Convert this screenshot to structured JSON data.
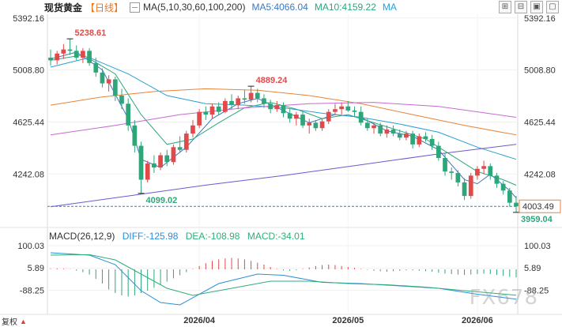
{
  "header": {
    "symbol": "现货黄金",
    "period": "【日线】",
    "ma_label": "MA(5,10,30,60,100,200)",
    "ma5_label": "MA5:4066.04",
    "ma10_label": "MA10:4159.22",
    "ma_more": "MA"
  },
  "toolbar": {
    "btn1": "⊞",
    "btn2": "⊟",
    "btn3": "▣",
    "btn4": "▢"
  },
  "macd_header": {
    "label": "MACD(26,12,9)",
    "diff": "DIFF:-125.98",
    "dea": "DEA:-108.98",
    "macd": "MACD:-34.01"
  },
  "corner": {
    "icon": "arrow-icon",
    "text": "复权"
  },
  "watermark": "FX678",
  "chart_data": [
    {
      "type": "candlestick",
      "y_axis_ticks": [
        "5392.16",
        "5008.80",
        "4625.44",
        "4242.08"
      ],
      "y_axis_tick_values": [
        5392.16,
        5008.8,
        4625.44,
        4242.08
      ],
      "ylim": [
        3935,
        5420
      ],
      "x_ticks": [
        "2026/04",
        "2026/05",
        "2026/06"
      ],
      "annotations": [
        {
          "text": "5238.61",
          "value": 5238.61,
          "kind": "high"
        },
        {
          "text": "4889.24",
          "value": 4889.24,
          "kind": "high"
        },
        {
          "text": "4099.02",
          "value": 4099.02,
          "kind": "low"
        },
        {
          "text": "3959.04",
          "value": 3959.04,
          "kind": "low"
        }
      ],
      "current_price": {
        "text": "4003.49",
        "value": 4003.49
      },
      "candles": [
        [
          5100,
          5160,
          5040,
          5080
        ],
        [
          5080,
          5150,
          5050,
          5130
        ],
        [
          5130,
          5200,
          5090,
          5160
        ],
        [
          5160,
          5238.61,
          5120,
          5150
        ],
        [
          5150,
          5190,
          5080,
          5100
        ],
        [
          5100,
          5170,
          5060,
          5150
        ],
        [
          5150,
          5170,
          5040,
          5060
        ],
        [
          5060,
          5100,
          4960,
          4990
        ],
        [
          4990,
          5020,
          4880,
          4910
        ],
        [
          4910,
          4970,
          4850,
          4940
        ],
        [
          4940,
          4960,
          4780,
          4820
        ],
        [
          4820,
          4870,
          4720,
          4760
        ],
        [
          4760,
          4800,
          4560,
          4600
        ],
        [
          4600,
          4640,
          4400,
          4450
        ],
        [
          4450,
          4480,
          4099.02,
          4200
        ],
        [
          4200,
          4340,
          4180,
          4320
        ],
        [
          4320,
          4380,
          4250,
          4290
        ],
        [
          4290,
          4400,
          4270,
          4380
        ],
        [
          4380,
          4420,
          4300,
          4330
        ],
        [
          4330,
          4460,
          4310,
          4440
        ],
        [
          4440,
          4520,
          4400,
          4420
        ],
        [
          4420,
          4560,
          4400,
          4540
        ],
        [
          4540,
          4640,
          4510,
          4600
        ],
        [
          4600,
          4720,
          4580,
          4700
        ],
        [
          4700,
          4740,
          4640,
          4680
        ],
        [
          4680,
          4760,
          4650,
          4740
        ],
        [
          4740,
          4770,
          4680,
          4700
        ],
        [
          4700,
          4800,
          4690,
          4780
        ],
        [
          4780,
          4830,
          4720,
          4750
        ],
        [
          4750,
          4820,
          4720,
          4800
        ],
        [
          4800,
          4860,
          4760,
          4790
        ],
        [
          4790,
          4889.24,
          4770,
          4840
        ],
        [
          4840,
          4870,
          4770,
          4800
        ],
        [
          4800,
          4830,
          4730,
          4760
        ],
        [
          4760,
          4790,
          4690,
          4720
        ],
        [
          4720,
          4780,
          4700,
          4750
        ],
        [
          4750,
          4770,
          4660,
          4690
        ],
        [
          4690,
          4720,
          4620,
          4650
        ],
        [
          4650,
          4700,
          4600,
          4680
        ],
        [
          4680,
          4700,
          4580,
          4600
        ],
        [
          4600,
          4650,
          4540,
          4620
        ],
        [
          4620,
          4640,
          4560,
          4580
        ],
        [
          4580,
          4650,
          4560,
          4630
        ],
        [
          4630,
          4720,
          4610,
          4700
        ],
        [
          4700,
          4760,
          4680,
          4720
        ],
        [
          4720,
          4770,
          4680,
          4740
        ],
        [
          4740,
          4780,
          4700,
          4710
        ],
        [
          4710,
          4740,
          4660,
          4700
        ],
        [
          4700,
          4740,
          4600,
          4620
        ],
        [
          4620,
          4650,
          4560,
          4580
        ],
        [
          4580,
          4620,
          4540,
          4600
        ],
        [
          4600,
          4620,
          4520,
          4540
        ],
        [
          4540,
          4600,
          4510,
          4570
        ],
        [
          4570,
          4600,
          4520,
          4540
        ],
        [
          4540,
          4570,
          4490,
          4510
        ],
        [
          4510,
          4560,
          4490,
          4540
        ],
        [
          4540,
          4560,
          4430,
          4460
        ],
        [
          4460,
          4540,
          4440,
          4520
        ],
        [
          4520,
          4550,
          4480,
          4500
        ],
        [
          4500,
          4530,
          4420,
          4450
        ],
        [
          4450,
          4480,
          4340,
          4360
        ],
        [
          4360,
          4400,
          4230,
          4260
        ],
        [
          4260,
          4290,
          4200,
          4250
        ],
        [
          4250,
          4270,
          4150,
          4180
        ],
        [
          4180,
          4210,
          4050,
          4080
        ],
        [
          4080,
          4250,
          4060,
          4230
        ],
        [
          4230,
          4300,
          4200,
          4280
        ],
        [
          4280,
          4340,
          4240,
          4300
        ],
        [
          4300,
          4320,
          4200,
          4230
        ],
        [
          4230,
          4250,
          4140,
          4170
        ],
        [
          4170,
          4190,
          4090,
          4120
        ],
        [
          4120,
          4140,
          4000,
          4030
        ],
        [
          4030,
          4080,
          3959.04,
          4003.49
        ]
      ],
      "moving_averages": [
        {
          "name": "MA5",
          "color": "#3a78c2",
          "values": [
            [
              0,
              5090
            ],
            [
              4,
              5140
            ],
            [
              8,
              5010
            ],
            [
              12,
              4650
            ],
            [
              14,
              4350
            ],
            [
              17,
              4290
            ],
            [
              21,
              4440
            ],
            [
              25,
              4650
            ],
            [
              29,
              4760
            ],
            [
              32,
              4800
            ],
            [
              36,
              4710
            ],
            [
              40,
              4620
            ],
            [
              44,
              4680
            ],
            [
              48,
              4660
            ],
            [
              52,
              4560
            ],
            [
              56,
              4520
            ],
            [
              60,
              4420
            ],
            [
              64,
              4200
            ],
            [
              66,
              4170
            ],
            [
              68,
              4240
            ],
            [
              71,
              4120
            ],
            [
              72,
              4066.04
            ]
          ]
        },
        {
          "name": "MA10",
          "color": "#2aa77a",
          "values": [
            [
              0,
              5080
            ],
            [
              5,
              5120
            ],
            [
              10,
              4980
            ],
            [
              14,
              4680
            ],
            [
              18,
              4460
            ],
            [
              22,
              4500
            ],
            [
              26,
              4620
            ],
            [
              30,
              4730
            ],
            [
              34,
              4770
            ],
            [
              38,
              4720
            ],
            [
              42,
              4650
            ],
            [
              46,
              4680
            ],
            [
              50,
              4620
            ],
            [
              54,
              4560
            ],
            [
              58,
              4500
            ],
            [
              62,
              4380
            ],
            [
              66,
              4260
            ],
            [
              70,
              4200
            ],
            [
              72,
              4159.22
            ]
          ]
        },
        {
          "name": "MA30",
          "color": "#2a9ed6",
          "values": [
            [
              0,
              5030
            ],
            [
              6,
              5100
            ],
            [
              12,
              4980
            ],
            [
              18,
              4820
            ],
            [
              24,
              4760
            ],
            [
              30,
              4750
            ],
            [
              36,
              4730
            ],
            [
              42,
              4690
            ],
            [
              48,
              4660
            ],
            [
              54,
              4610
            ],
            [
              60,
              4550
            ],
            [
              66,
              4440
            ],
            [
              72,
              4350
            ]
          ]
        },
        {
          "name": "MA60",
          "color": "#e8843a",
          "values": [
            [
              0,
              4750
            ],
            [
              8,
              4810
            ],
            [
              16,
              4850
            ],
            [
              24,
              4870
            ],
            [
              32,
              4860
            ],
            [
              40,
              4820
            ],
            [
              48,
              4760
            ],
            [
              56,
              4680
            ],
            [
              64,
              4600
            ],
            [
              72,
              4530
            ]
          ]
        },
        {
          "name": "MA100",
          "color": "#c66ad0",
          "values": [
            [
              0,
              4530
            ],
            [
              10,
              4600
            ],
            [
              20,
              4680
            ],
            [
              30,
              4730
            ],
            [
              40,
              4760
            ],
            [
              50,
              4770
            ],
            [
              60,
              4740
            ],
            [
              72,
              4660
            ]
          ]
        },
        {
          "name": "MA200",
          "color": "#6a5acd",
          "values": [
            [
              0,
              4000
            ],
            [
              12,
              4080
            ],
            [
              24,
              4160
            ],
            [
              36,
              4230
            ],
            [
              48,
              4310
            ],
            [
              60,
              4390
            ],
            [
              72,
              4460
            ]
          ]
        }
      ]
    },
    {
      "type": "macd",
      "y_axis_ticks": [
        "100.03",
        "5.89",
        "-88.25"
      ],
      "y_axis_tick_values": [
        100.03,
        5.89,
        -88.25
      ],
      "ylim": [
        -190,
        130
      ],
      "histogram": [
        2,
        4,
        3,
        1,
        -5,
        -12,
        -22,
        -40,
        -60,
        -85,
        -100,
        -110,
        -115,
        -110,
        -100,
        -90,
        -78,
        -64,
        -52,
        -38,
        -25,
        -12,
        2,
        14,
        26,
        36,
        42,
        46,
        48,
        46,
        42,
        36,
        28,
        20,
        10,
        2,
        -4,
        -6,
        -4,
        2,
        8,
        14,
        18,
        20,
        18,
        14,
        10,
        6,
        2,
        -2,
        -6,
        -8,
        -10,
        -8,
        -6,
        -4,
        -4,
        -6,
        -8,
        -10,
        -14,
        -18,
        -20,
        -22,
        -24,
        -22,
        -20,
        -18,
        -20,
        -24,
        -28,
        -32,
        -34.01
      ],
      "series": [
        {
          "name": "DIFF",
          "color": "#2a8fd6",
          "values": [
            [
              0,
              70
            ],
            [
              6,
              60
            ],
            [
              10,
              20
            ],
            [
              14,
              -90
            ],
            [
              17,
              -140
            ],
            [
              20,
              -150
            ],
            [
              26,
              -60
            ],
            [
              32,
              -20
            ],
            [
              36,
              -25
            ],
            [
              42,
              -55
            ],
            [
              48,
              -60
            ],
            [
              54,
              -70
            ],
            [
              60,
              -80
            ],
            [
              66,
              -105
            ],
            [
              72,
              -125.98
            ]
          ]
        },
        {
          "name": "DEA",
          "color": "#2fae7a",
          "values": [
            [
              0,
              60
            ],
            [
              6,
              62
            ],
            [
              10,
              40
            ],
            [
              14,
              -20
            ],
            [
              18,
              -80
            ],
            [
              22,
              -110
            ],
            [
              28,
              -80
            ],
            [
              34,
              -50
            ],
            [
              40,
              -50
            ],
            [
              46,
              -60
            ],
            [
              52,
              -65
            ],
            [
              58,
              -75
            ],
            [
              64,
              -90
            ],
            [
              72,
              -108.98
            ]
          ]
        }
      ]
    }
  ]
}
